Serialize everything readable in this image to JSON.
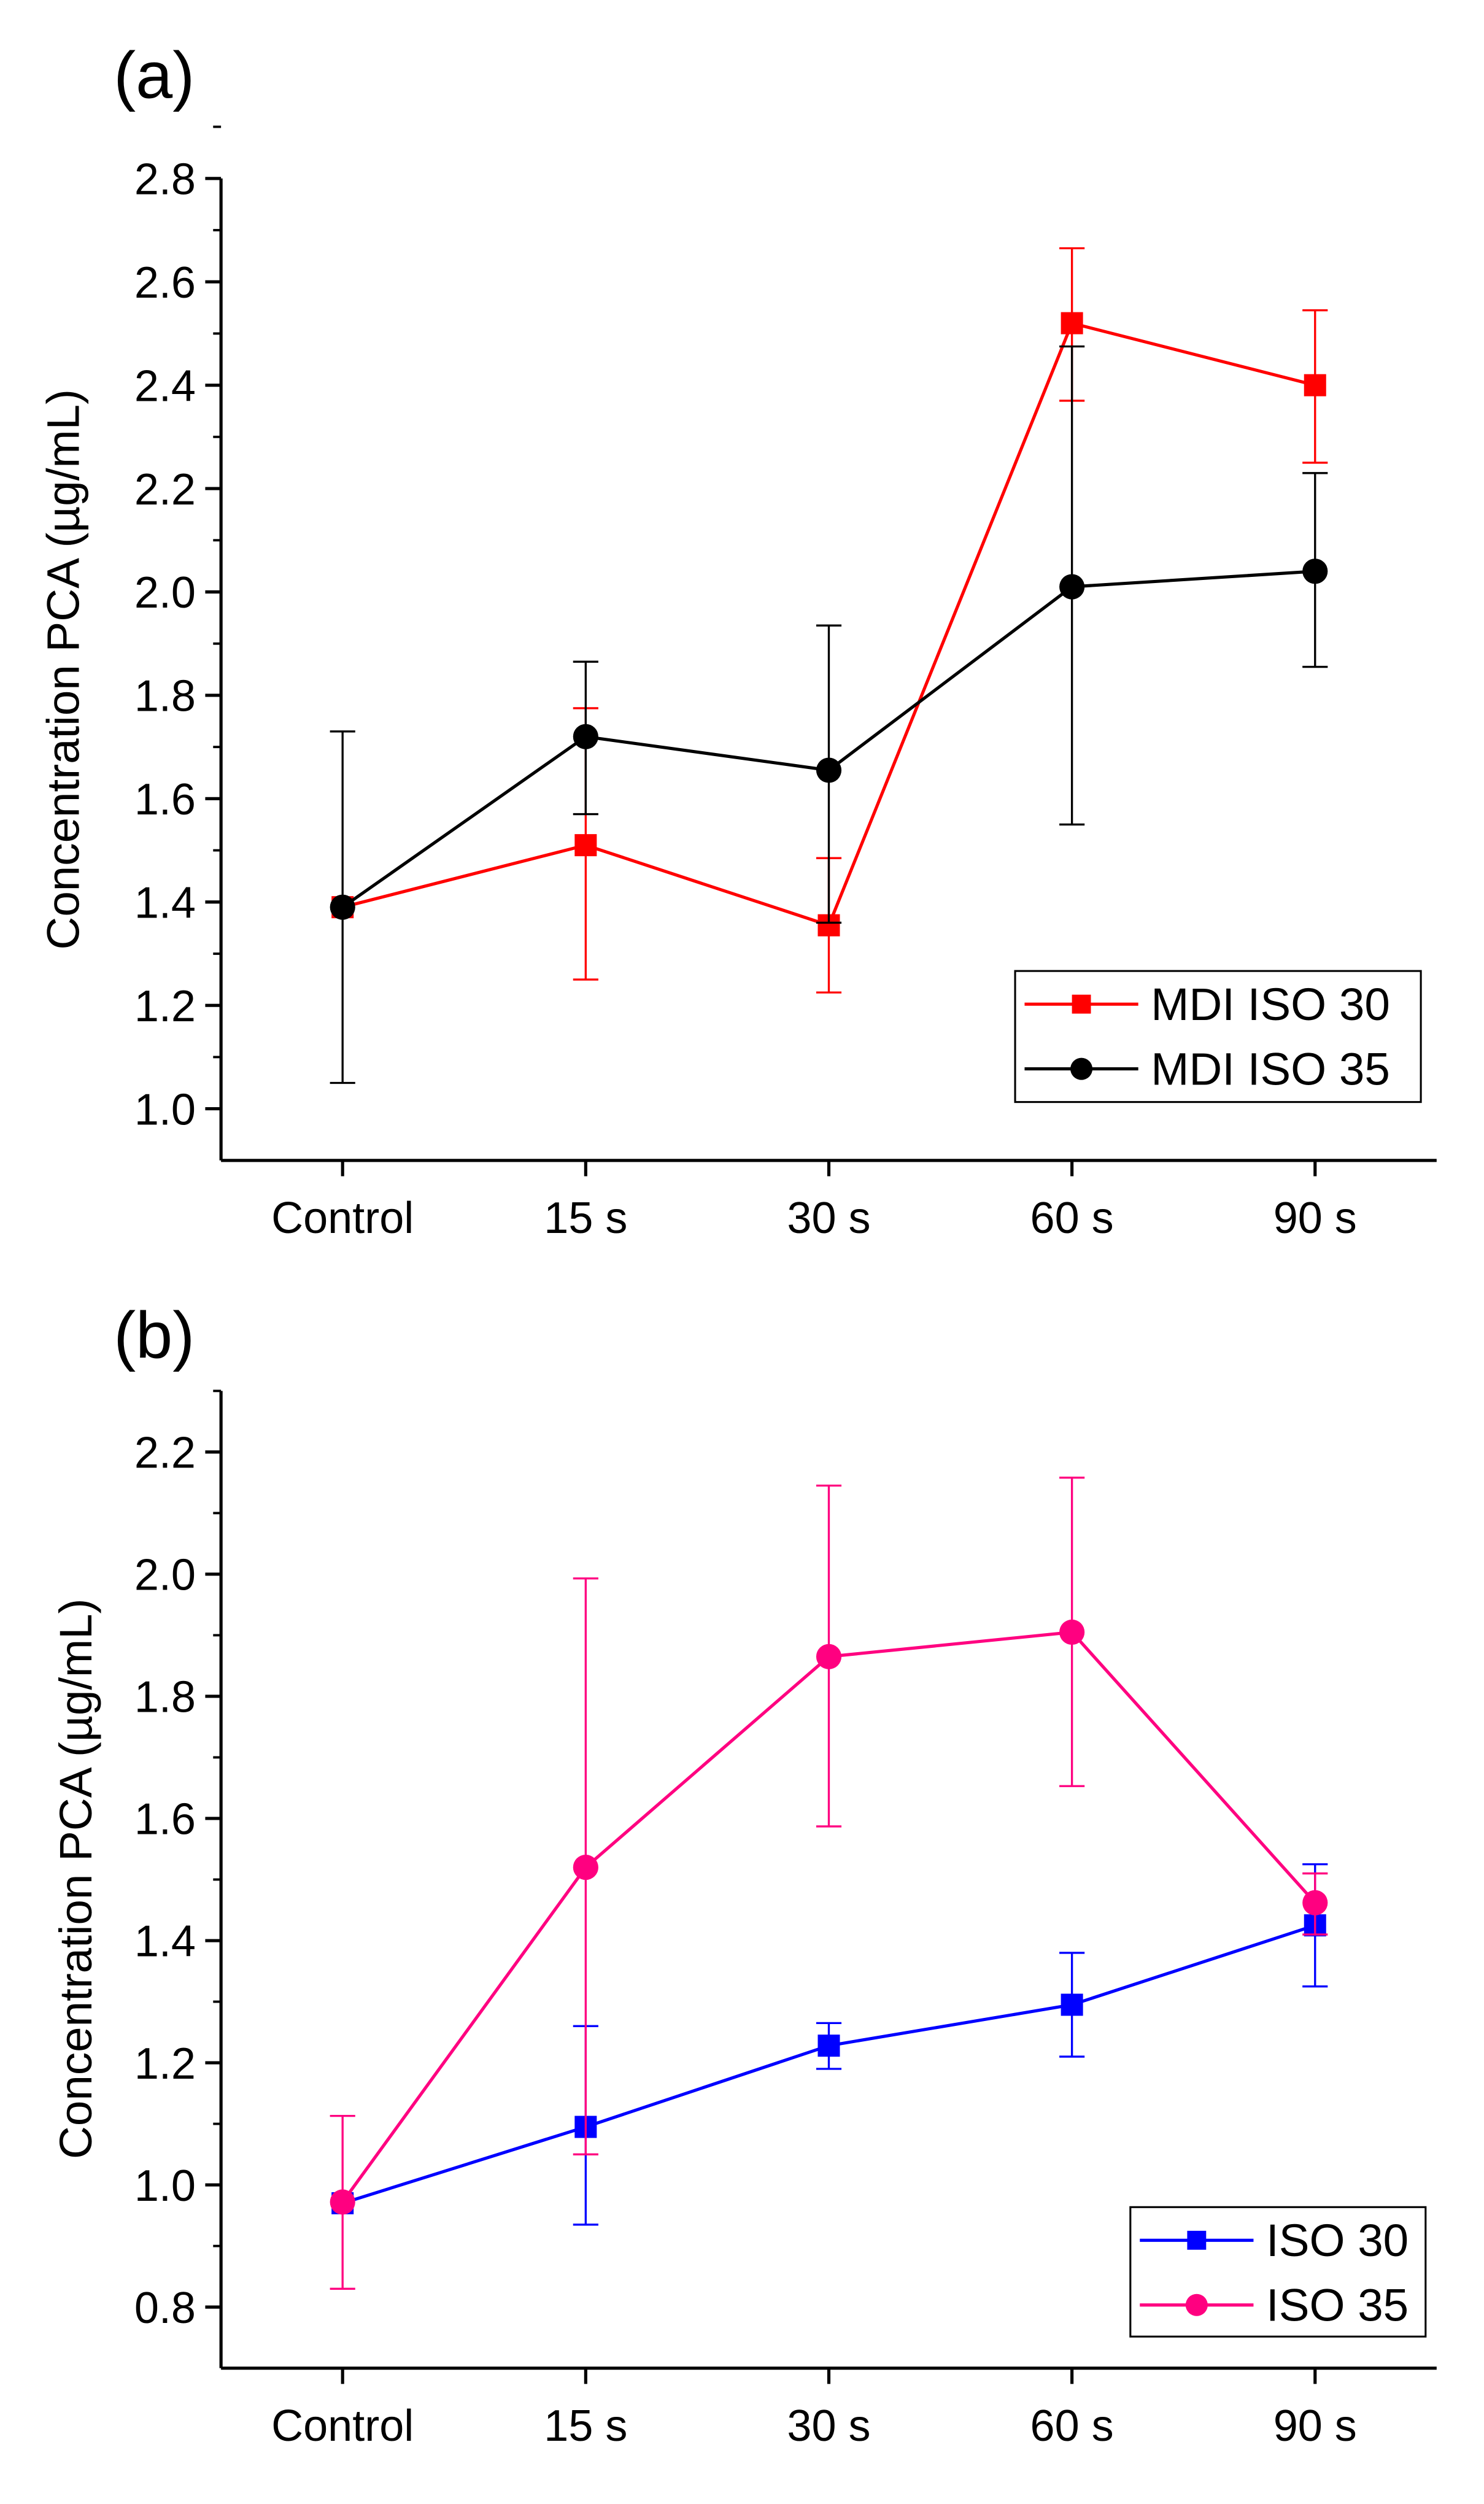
{
  "chart_data": [
    {
      "panel_label": "(a)",
      "type": "line",
      "categories": [
        "Control",
        "15 s",
        "30 s",
        "60 s",
        "90 s"
      ],
      "ylabel": "Concentration PCA (µg/mL)",
      "xlabel": "",
      "ylim": [
        0.9,
        2.8
      ],
      "yticks": [
        "1.0",
        "1.2",
        "1.4",
        "1.6",
        "1.8",
        "2.0",
        "2.2",
        "2.4",
        "2.6",
        "2.8"
      ],
      "grid": false,
      "legend_position": "bottom-right",
      "series": [
        {
          "name": "MDI ISO 30",
          "color": "#FF0000",
          "marker": "square",
          "values": [
            1.39,
            1.51,
            1.355,
            2.52,
            2.4
          ],
          "err_low": [
            1.39,
            1.25,
            1.225,
            2.37,
            2.25
          ],
          "err_high": [
            1.39,
            1.775,
            1.485,
            2.665,
            2.545
          ]
        },
        {
          "name": "MDI ISO 35",
          "color": "#000000",
          "marker": "circle",
          "values": [
            1.39,
            1.72,
            1.655,
            2.01,
            2.04
          ],
          "err_low": [
            1.05,
            1.57,
            1.36,
            1.55,
            1.855
          ],
          "err_high": [
            1.73,
            1.865,
            1.935,
            2.475,
            2.23
          ]
        }
      ]
    },
    {
      "panel_label": "(b)",
      "type": "line",
      "categories": [
        "Control",
        "15 s",
        "30 s",
        "60 s",
        "90 s"
      ],
      "ylabel": "Concentration PCA (µg/mL)",
      "xlabel": "",
      "ylim": [
        0.7,
        2.3
      ],
      "yticks": [
        "0.8",
        "1.0",
        "1.2",
        "1.4",
        "1.6",
        "1.8",
        "2.0",
        "2.2"
      ],
      "grid": false,
      "legend_position": "bottom-right",
      "series": [
        {
          "name": "ISO 30",
          "color": "#0000FF",
          "marker": "square",
          "values": [
            0.97,
            1.095,
            1.228,
            1.295,
            1.425
          ],
          "err_low": [
            0.97,
            0.935,
            1.19,
            1.21,
            1.325
          ],
          "err_high": [
            0.97,
            1.26,
            1.265,
            1.38,
            1.525
          ]
        },
        {
          "name": "ISO 35",
          "color": "#FF0080",
          "marker": "circle",
          "values": [
            0.972,
            1.52,
            1.865,
            1.905,
            1.462
          ],
          "err_low": [
            0.83,
            1.05,
            1.587,
            1.653,
            1.41
          ],
          "err_high": [
            1.113,
            1.993,
            2.145,
            2.158,
            1.51
          ]
        }
      ]
    }
  ]
}
